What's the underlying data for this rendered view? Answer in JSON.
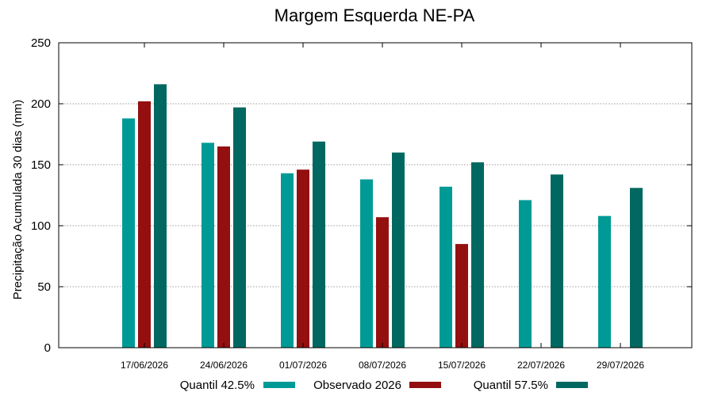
{
  "chart_data": {
    "type": "bar",
    "title": "Margem Esquerda NE-PA",
    "xlabel": "",
    "ylabel": "Precipitação Acumulada 30 dias (mm)",
    "ylim": [
      0,
      250
    ],
    "yticks": [
      0,
      50,
      100,
      150,
      200,
      250
    ],
    "grid": true,
    "legend_position": "bottom",
    "categories": [
      "17/06/2026",
      "24/06/2026",
      "01/07/2026",
      "08/07/2026",
      "15/07/2026",
      "22/07/2026",
      "29/07/2026"
    ],
    "series": [
      {
        "name": "Quantil 42.5%",
        "color": "#009a96",
        "values": [
          188,
          168,
          143,
          138,
          132,
          121,
          108
        ]
      },
      {
        "name": "Observado 2026",
        "color": "#941010",
        "values": [
          202,
          165,
          146,
          107,
          85,
          null,
          null
        ]
      },
      {
        "name": "Quantil 57.5%",
        "color": "#006860",
        "values": [
          216,
          197,
          169,
          160,
          152,
          142,
          131
        ]
      }
    ]
  }
}
